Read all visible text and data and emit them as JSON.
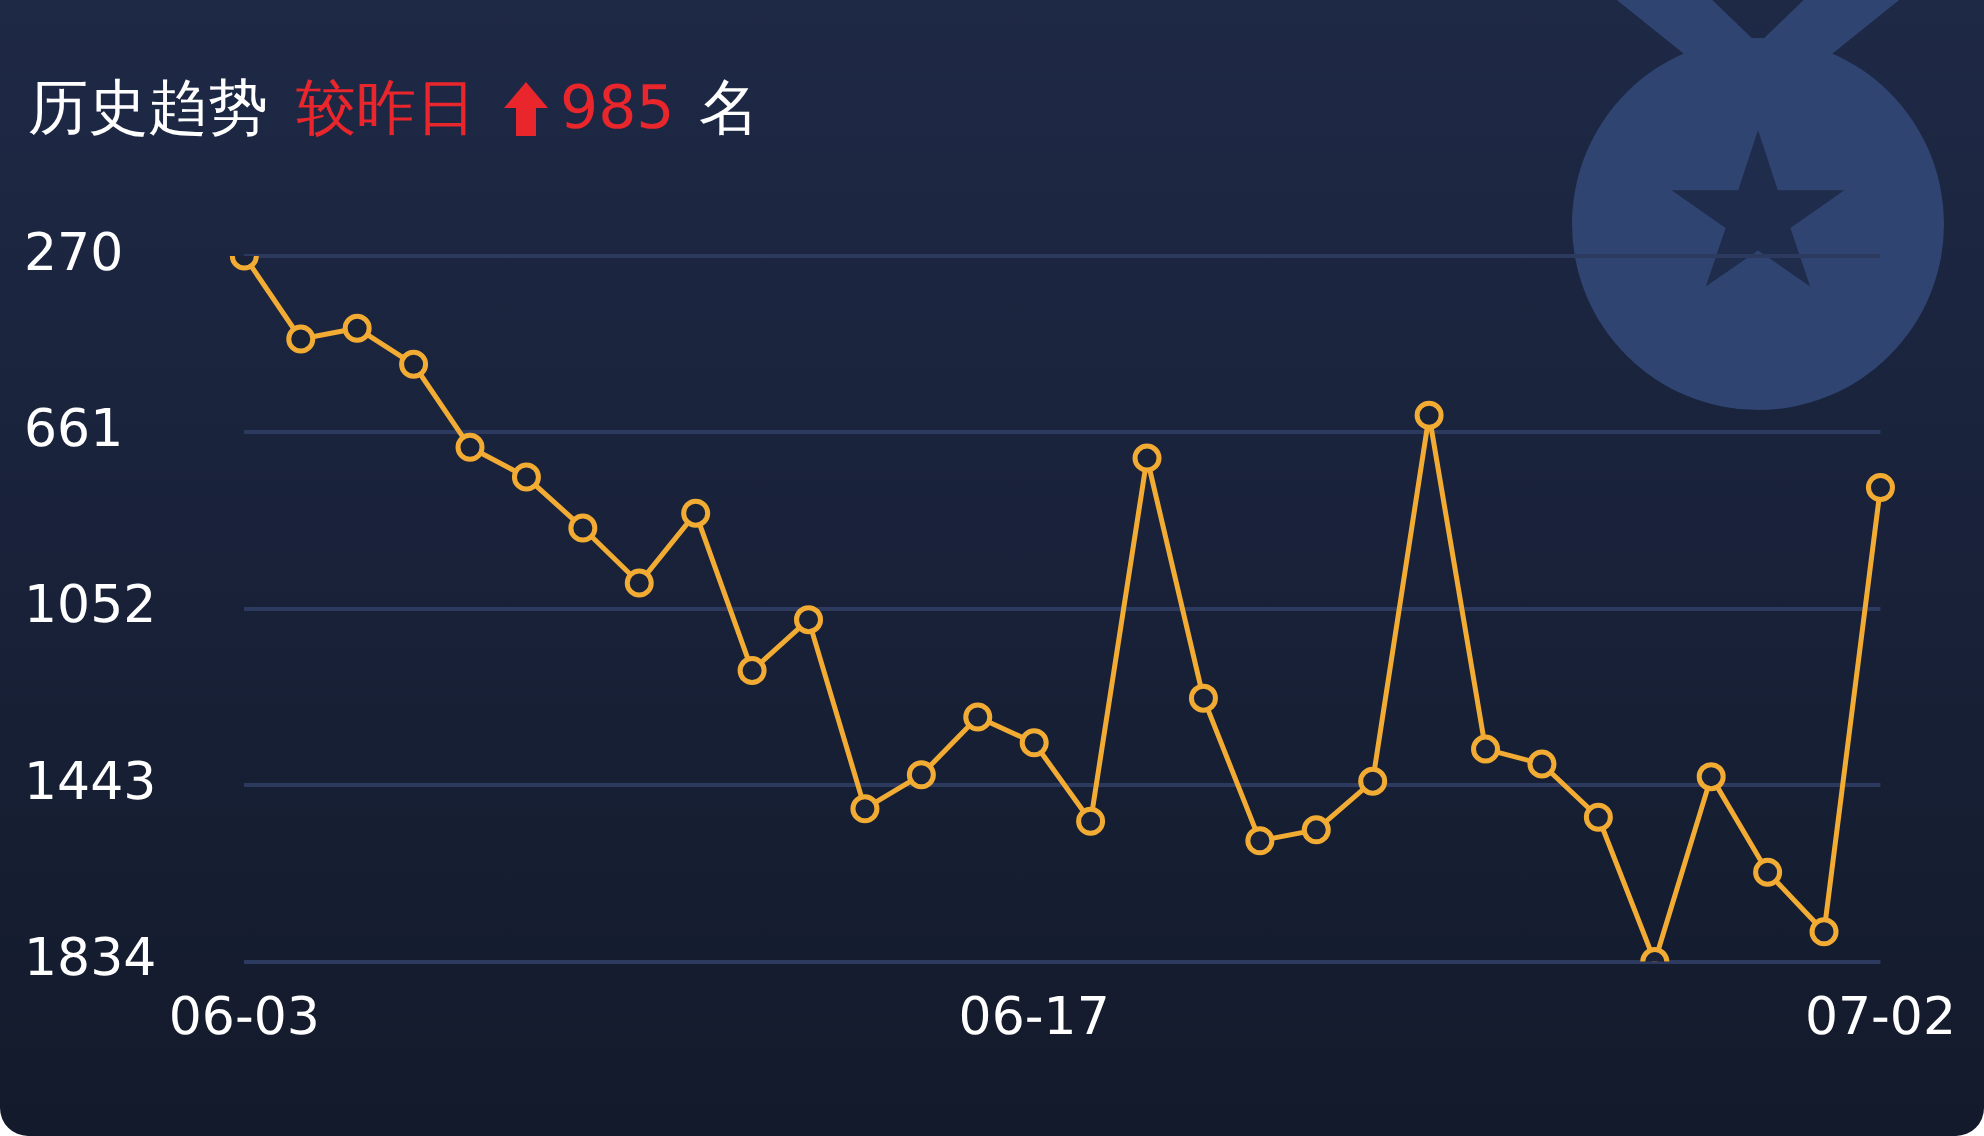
{
  "chart_data": {
    "type": "line",
    "title": "历史趋势",
    "subtitle": "较昨日",
    "annotations": [
      "985",
      "名"
    ],
    "categories": [
      "06-03",
      null,
      null,
      null,
      null,
      null,
      null,
      null,
      null,
      null,
      null,
      null,
      null,
      null,
      "06-17",
      null,
      null,
      null,
      null,
      null,
      null,
      null,
      null,
      null,
      null,
      null,
      null,
      null,
      null,
      "07-02"
    ],
    "series": [
      {
        "color": "#f2ac34",
        "values": [
          270,
          454,
          430,
          510,
          694,
          760,
          873,
          995,
          840,
          1189,
          1076,
          1495,
          1420,
          1292,
          1349,
          1523,
          718,
          1250,
          1566,
          1542,
          1434,
          623,
          1363,
          1396,
          1514,
          1834,
          1424,
          1636,
          1768,
          783
        ]
      }
    ],
    "ylim": [
      1834,
      270
    ],
    "yticks": [
      270,
      661,
      1052,
      1443,
      1834
    ],
    "grid": "y",
    "legend": false,
    "marker": "circle",
    "line_style": "solid"
  }
}
